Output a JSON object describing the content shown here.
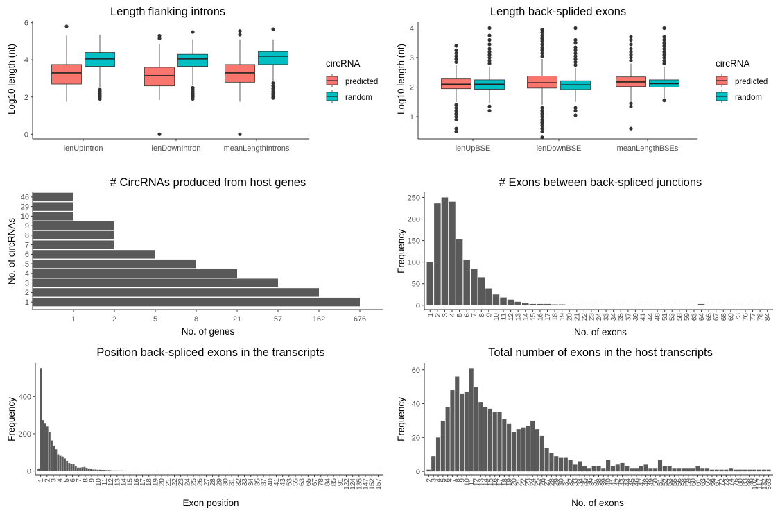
{
  "colors": {
    "predicted": "#F8766D",
    "random": "#00BFC4",
    "bar": "#595959",
    "axis": "#333333"
  },
  "chart_data": [
    {
      "id": "p1",
      "type": "box",
      "title": "Length flanking introns",
      "xlabel": "",
      "ylabel": "Log10 length (nt)",
      "ylim": [
        -0.25,
        6.1
      ],
      "yticks": [
        "0",
        "2",
        "4",
        "6"
      ],
      "categories": [
        "lenUpIntron",
        "lenDownIntron",
        "meanLengthIntrons"
      ],
      "legend_title": "circRNA",
      "legend_labels": [
        "predicted",
        "random"
      ],
      "boxes": [
        {
          "cat": 0,
          "group": 0,
          "q1": 2.7,
          "med": 3.3,
          "q3": 3.75,
          "lo": 1.75,
          "hi": 5.3,
          "out": [
            5.8
          ]
        },
        {
          "cat": 0,
          "group": 1,
          "q1": 3.65,
          "med": 4.05,
          "q3": 4.4,
          "lo": 2.55,
          "hi": 5.35,
          "out": [
            2.4,
            2.3,
            2.2,
            2.1,
            2.0,
            1.9
          ]
        },
        {
          "cat": 1,
          "group": 0,
          "q1": 2.6,
          "med": 3.15,
          "q3": 3.6,
          "lo": 1.85,
          "hi": 4.85,
          "out": [
            5.3,
            5.15,
            0.0
          ]
        },
        {
          "cat": 1,
          "group": 1,
          "q1": 3.65,
          "med": 4.05,
          "q3": 4.3,
          "lo": 2.65,
          "hi": 5.1,
          "out": [
            5.5,
            2.5,
            2.4,
            2.3,
            2.2,
            2.1,
            2.0,
            1.9
          ]
        },
        {
          "cat": 2,
          "group": 0,
          "q1": 2.8,
          "med": 3.3,
          "q3": 3.75,
          "lo": 1.75,
          "hi": 5.1,
          "out": [
            5.55,
            5.35,
            0.0
          ]
        },
        {
          "cat": 2,
          "group": 1,
          "q1": 3.75,
          "med": 4.2,
          "q3": 4.45,
          "lo": 2.8,
          "hi": 5.1,
          "out": [
            5.65,
            2.75,
            2.6,
            2.45,
            2.3,
            2.2,
            2.1,
            2.0,
            1.95
          ]
        }
      ]
    },
    {
      "id": "p2",
      "type": "box",
      "title": "Length back-splided exons",
      "xlabel": "",
      "ylabel": "Log10 length (nt)",
      "ylim": [
        0.25,
        4.2
      ],
      "yticks": [
        "1",
        "2",
        "3",
        "4"
      ],
      "categories": [
        "lenUpBSE",
        "lenDownBSE",
        "meanLengthBSEs"
      ],
      "legend_title": "circRNA",
      "legend_labels": [
        "predicted",
        "random"
      ],
      "boxes": [
        {
          "cat": 0,
          "group": 0,
          "q1": 1.95,
          "med": 2.1,
          "q3": 2.28,
          "lo": 1.5,
          "hi": 2.75,
          "out": [
            2.85,
            2.95,
            3.05,
            3.15,
            3.25,
            3.4,
            1.4,
            1.3,
            1.2,
            1.1,
            1.0,
            0.9,
            0.6,
            0.5
          ]
        },
        {
          "cat": 0,
          "group": 1,
          "q1": 1.93,
          "med": 2.1,
          "q3": 2.25,
          "lo": 1.45,
          "hi": 2.7,
          "out": [
            2.8,
            2.9,
            3.0,
            3.1,
            3.2,
            3.3,
            3.45,
            3.6,
            3.75,
            4.0,
            1.35,
            1.2
          ]
        },
        {
          "cat": 1,
          "group": 0,
          "q1": 1.97,
          "med": 2.15,
          "q3": 2.38,
          "lo": 1.4,
          "hi": 2.95,
          "out": [
            3.05,
            3.15,
            3.25,
            3.35,
            3.45,
            3.55,
            3.65,
            3.75,
            3.85,
            3.95,
            1.3,
            1.2,
            1.1,
            1.0,
            0.9,
            0.8,
            0.7,
            0.6,
            0.5,
            0.3
          ]
        },
        {
          "cat": 1,
          "group": 1,
          "q1": 1.92,
          "med": 2.08,
          "q3": 2.22,
          "lo": 1.5,
          "hi": 2.65,
          "out": [
            2.75,
            2.85,
            2.95,
            3.05,
            3.15,
            3.25,
            3.35,
            3.5,
            3.6,
            4.0,
            1.3,
            1.2,
            1.05
          ]
        },
        {
          "cat": 2,
          "group": 0,
          "q1": 2.02,
          "med": 2.18,
          "q3": 2.35,
          "lo": 1.55,
          "hi": 2.8,
          "out": [
            2.9,
            3.0,
            3.1,
            3.2,
            3.3,
            3.45,
            3.6,
            3.7,
            1.45,
            1.35,
            0.6
          ]
        },
        {
          "cat": 2,
          "group": 1,
          "q1": 2.0,
          "med": 2.12,
          "q3": 2.25,
          "lo": 1.6,
          "hi": 2.7,
          "out": [
            2.8,
            2.9,
            3.0,
            3.1,
            3.2,
            3.3,
            3.4,
            3.5,
            3.6,
            3.7,
            4.0,
            1.55
          ]
        }
      ]
    },
    {
      "id": "p3",
      "type": "bar-horizontal",
      "title": "# CircRNAs produced from host genes",
      "xlabel": "No. of genes",
      "ylabel": "No. of circRNAs",
      "categories": [
        "1",
        "2",
        "3",
        "4",
        "5",
        "6",
        "7",
        "8",
        "9",
        "10",
        "29",
        "46"
      ],
      "values": [
        676,
        162,
        57,
        21,
        8,
        5,
        2,
        2,
        2,
        1,
        1,
        1
      ],
      "xticks": [
        "1",
        "2",
        "5",
        "8",
        "21",
        "57",
        "162",
        "676"
      ]
    },
    {
      "id": "p4",
      "type": "bar",
      "title": "# Exons between back-spliced junctions",
      "xlabel": "No. of exons",
      "ylabel": "Frequency",
      "ylim": [
        -10,
        262
      ],
      "yticks": [
        "0",
        "50",
        "100",
        "150",
        "200",
        "250"
      ],
      "categories": [
        "1",
        "2",
        "3",
        "4",
        "5",
        "6",
        "7",
        "8",
        "9",
        "10",
        "11",
        "12",
        "13",
        "14",
        "15",
        "16",
        "17",
        "18",
        "19",
        "20",
        "21",
        "22",
        "23",
        "24",
        "33",
        "34",
        "35",
        "37",
        "39",
        "41",
        "44",
        "48",
        "51",
        "53",
        "58",
        "59",
        "63",
        "64",
        "65",
        "67",
        "68",
        "69",
        "73",
        "76",
        "77",
        "78",
        "84"
      ],
      "values": [
        101,
        236,
        250,
        240,
        153,
        105,
        85,
        65,
        39,
        25,
        18,
        13,
        8,
        6,
        3,
        3,
        3,
        2,
        2,
        1,
        1,
        1,
        1,
        1,
        1,
        1,
        1,
        1,
        1,
        1,
        1,
        1,
        1,
        1,
        1,
        1,
        1,
        3,
        1,
        1,
        1,
        1,
        1,
        1,
        1,
        1,
        1
      ]
    },
    {
      "id": "p5",
      "type": "bar",
      "title": "Position back-spliced exons in the transcripts",
      "xlabel": "Exon position",
      "ylabel": "Frequency",
      "ylim": [
        -20,
        580
      ],
      "yticks": [
        "0",
        "200",
        "400"
      ],
      "tick_every": 1,
      "categories": [
        "1",
        "2",
        "3",
        "4",
        "5",
        "6",
        "7",
        "8",
        "9",
        "10",
        "11",
        "12",
        "13",
        "14",
        "15",
        "16",
        "17",
        "18",
        "19",
        "20",
        "21",
        "22",
        "23",
        "24",
        "25",
        "26",
        "27",
        "28",
        "29",
        "30",
        "31",
        "32",
        "33",
        "34",
        "35",
        "36",
        "37",
        "38",
        "39",
        "40",
        "41",
        "42",
        "43",
        "44",
        "45",
        "46",
        "47",
        "48",
        "49",
        "50",
        "51",
        "52",
        "53",
        "54",
        "55",
        "56",
        "57",
        "58",
        "59",
        "60",
        "61",
        "62",
        "63",
        "64",
        "65",
        "66",
        "67",
        "68",
        "69",
        "70",
        "71",
        "72",
        "73",
        "74",
        "75",
        "76",
        "77",
        "78",
        "79",
        "80",
        "81",
        "82",
        "83",
        "84",
        "85",
        "86",
        "87",
        "88",
        "89",
        "90",
        "91",
        "92",
        "93",
        "94",
        "95",
        "96",
        "97",
        "98",
        "99",
        "100",
        "101",
        "102",
        "103",
        "104",
        "105",
        "106",
        "107",
        "108",
        "109",
        "110",
        "111",
        "112",
        "113",
        "114",
        "115",
        "116",
        "117",
        "118",
        "119",
        "120",
        "121",
        "122",
        "123",
        "124",
        "125",
        "126",
        "127",
        "128",
        "129",
        "130",
        "131",
        "132",
        "133",
        "134",
        "135",
        "136",
        "137",
        "138",
        "139",
        "140",
        "141",
        "142",
        "143",
        "144",
        "145",
        "146",
        "147",
        "148",
        "149",
        "150",
        "151",
        "152",
        "153",
        "154",
        "155",
        "156",
        "157"
      ],
      "values": [
        14,
        553,
        274,
        255,
        240,
        208,
        164,
        137,
        117,
        90,
        82,
        78,
        68,
        55,
        43,
        38,
        39,
        25,
        18,
        18,
        20,
        22,
        17,
        14,
        10,
        8,
        8,
        7,
        7,
        6,
        6,
        5,
        5,
        4,
        3,
        3,
        3,
        3,
        3,
        2,
        2,
        2,
        2,
        2,
        2,
        2,
        2,
        2,
        2,
        2,
        2,
        2,
        2,
        2,
        2,
        2,
        2,
        2,
        2,
        2,
        1,
        1,
        1,
        1,
        1,
        1,
        1,
        1,
        1,
        1,
        1,
        1,
        1,
        1,
        1,
        1,
        1,
        1,
        1,
        1,
        1,
        1,
        1,
        1,
        1,
        1,
        1,
        1,
        1,
        1,
        1,
        1,
        1,
        1,
        1,
        1,
        1,
        1,
        1,
        1,
        1,
        1,
        1,
        1,
        1,
        1,
        1,
        1,
        1,
        1,
        1,
        1,
        1,
        1,
        1,
        1,
        1,
        1,
        1,
        1,
        1,
        1,
        1,
        1,
        1,
        1,
        1,
        1,
        1,
        1,
        1,
        1,
        1,
        1,
        1,
        1,
        1,
        1,
        1,
        1,
        1,
        1,
        1,
        1,
        1,
        1,
        1,
        1,
        1,
        1,
        1,
        1,
        1,
        1,
        1,
        1,
        1
      ],
      "tick_labels": [
        "1",
        "2",
        "3",
        "4",
        "5",
        "6",
        "7",
        "8",
        "9",
        "10",
        "11",
        "12",
        "13",
        "14",
        "15",
        "16",
        "17",
        "18",
        "19",
        "20",
        "21",
        "22",
        "23",
        "24",
        "25",
        "26",
        "27",
        "28",
        "29",
        "30",
        "31",
        "32",
        "33",
        "34",
        "35",
        "37",
        "40",
        "41",
        "43",
        "53",
        "55",
        "63",
        "65",
        "67",
        "78",
        "84",
        "85",
        "91",
        "122",
        "124",
        "135",
        "147",
        "152",
        "157"
      ]
    },
    {
      "id": "p6",
      "type": "bar",
      "title": "Total number of exons in the host transcripts",
      "xlabel": "No. of exons",
      "ylabel": "Frequency",
      "ylim": [
        -2,
        64
      ],
      "yticks": [
        "0",
        "20",
        "40",
        "60"
      ],
      "categories": [
        "2",
        "3",
        "4",
        "5",
        "6",
        "7",
        "8",
        "9",
        "10",
        "11",
        "12",
        "13",
        "14",
        "15",
        "16",
        "17",
        "18",
        "19",
        "20",
        "21",
        "22",
        "23",
        "24",
        "25",
        "26",
        "27",
        "28",
        "29",
        "30",
        "31",
        "32",
        "33",
        "34",
        "35",
        "36",
        "37",
        "38",
        "39",
        "40",
        "41",
        "42",
        "43",
        "44",
        "45",
        "46",
        "47",
        "48",
        "49",
        "50",
        "51",
        "52",
        "53",
        "55",
        "56",
        "58",
        "59",
        "60",
        "61",
        "63",
        "65",
        "66",
        "67",
        "72",
        "73",
        "74",
        "76",
        "80",
        "83",
        "98",
        "102",
        "117",
        "132",
        "363"
      ],
      "values": [
        1,
        9,
        20,
        30,
        38,
        48,
        56,
        46,
        47,
        61,
        50,
        41,
        38,
        37,
        35,
        35,
        31,
        28,
        23,
        25,
        26,
        27,
        30,
        25,
        21,
        14,
        11,
        9,
        8,
        8,
        7,
        4,
        6,
        3,
        2,
        3,
        3,
        2,
        7,
        3,
        4,
        5,
        3,
        2,
        2,
        3,
        4,
        2,
        2,
        7,
        3,
        3,
        2,
        2,
        2,
        2,
        2,
        3,
        2,
        2,
        1,
        1,
        1,
        1,
        2,
        1,
        1,
        1,
        1,
        1,
        1,
        1,
        1
      ]
    }
  ]
}
